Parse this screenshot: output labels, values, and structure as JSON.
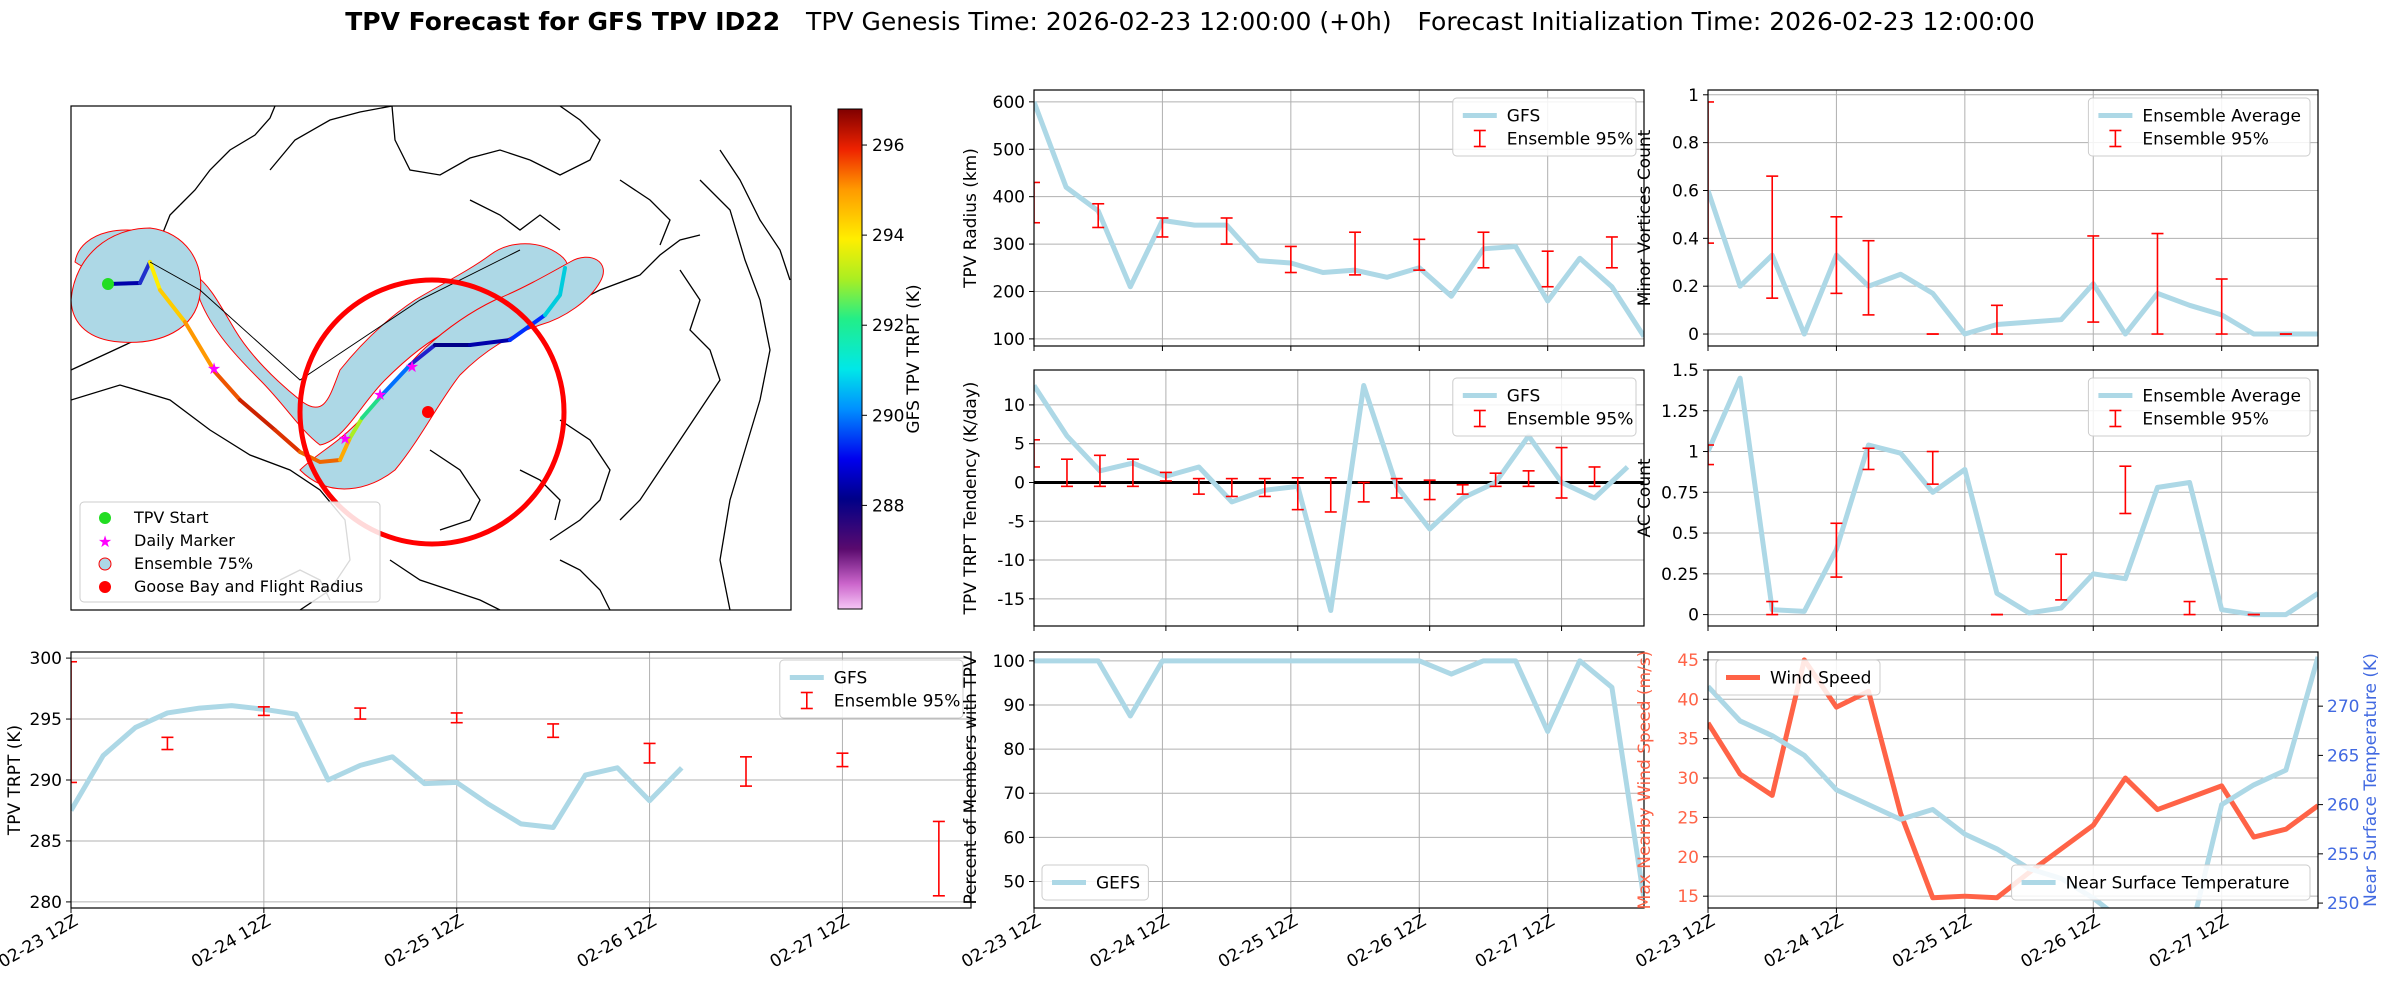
{
  "suptitle": {
    "bold": "TPV Forecast for GFS TPV ID22",
    "genesis": "TPV Genesis Time: 2026-02-23 12:00:00 (+0h)",
    "init": "Forecast Initialization Time: 2026-02-23 12:00:00"
  },
  "time_ticks": [
    "02-23 12Z",
    "02-24 12Z",
    "02-25 12Z",
    "02-26 12Z",
    "02-27 12Z"
  ],
  "colors": {
    "gfs_line": "#add8e6",
    "ensemble": "#ff0000",
    "wind": "#ff6347",
    "temp_axis": "#4169e1",
    "land_fill": "#add8e6",
    "circle": "#ff0000"
  },
  "map": {
    "colorbar_label": "GFS TPV TRPT (K)",
    "colorbar_ticks": [
      288,
      290,
      292,
      294,
      296
    ],
    "colorbar_range": [
      285.7,
      296.8
    ],
    "legend": [
      "TPV Start",
      "Daily Marker",
      "Ensemble 75%",
      "Goose Bay and Flight Radius"
    ]
  },
  "chart_data": [
    {
      "id": "radius",
      "type": "line",
      "title": "",
      "xlabel": "",
      "ylabel": "TPV Radius (km)",
      "ylim": [
        85,
        625
      ],
      "yticks": [
        100,
        200,
        300,
        400,
        500,
        600
      ],
      "grid": true,
      "legend_placement": "top-right",
      "show_xticklabels": false,
      "series": [
        {
          "name": "GFS",
          "kind": "line",
          "values": [
            600,
            420,
            370,
            210,
            350,
            340,
            340,
            265,
            260,
            240,
            245,
            230,
            250,
            190,
            290,
            295,
            180,
            270,
            210,
            105
          ]
        }
      ],
      "errorbars": {
        "name": "Ensemble 95%",
        "points": [
          [
            0,
            345,
            430
          ],
          [
            2,
            335,
            385
          ],
          [
            4,
            315,
            355
          ],
          [
            6,
            300,
            355
          ],
          [
            8,
            240,
            295
          ],
          [
            10,
            235,
            325
          ],
          [
            12,
            245,
            310
          ],
          [
            14,
            250,
            325
          ],
          [
            16,
            210,
            285
          ],
          [
            18,
            250,
            315
          ]
        ]
      }
    },
    {
      "id": "minor",
      "type": "line",
      "title": "",
      "xlabel": "",
      "ylabel": "Minor Vortices Count",
      "ylim": [
        -0.05,
        1.02
      ],
      "yticks": [
        0.0,
        0.2,
        0.4,
        0.6,
        0.8,
        1.0
      ],
      "grid": true,
      "legend_placement": "top-right",
      "show_xticklabels": false,
      "series": [
        {
          "name": "Ensemble Average",
          "kind": "line",
          "values": [
            0.6,
            0.2,
            0.33,
            0.0,
            0.33,
            0.2,
            0.25,
            0.17,
            0.0,
            0.04,
            0.05,
            0.06,
            0.21,
            0.0,
            0.17,
            0.12,
            0.08,
            0.0,
            0.0,
            0.0
          ]
        }
      ],
      "errorbars": {
        "name": "Ensemble 95%",
        "points": [
          [
            0,
            0.38,
            0.97
          ],
          [
            2,
            0.15,
            0.66
          ],
          [
            4,
            0.17,
            0.49
          ],
          [
            5,
            0.08,
            0.39
          ],
          [
            7,
            0.0,
            0.0
          ],
          [
            9,
            0.0,
            0.12
          ],
          [
            12,
            0.05,
            0.41
          ],
          [
            14,
            0.0,
            0.42
          ],
          [
            16,
            0.0,
            0.23
          ],
          [
            18,
            0.0,
            0.0
          ]
        ]
      }
    },
    {
      "id": "tendency",
      "type": "line",
      "title": "",
      "xlabel": "",
      "ylabel": "TPV TRPT Tendency (K/day)",
      "ylim": [
        -18.5,
        14.5
      ],
      "yticks": [
        -15,
        -10,
        -5,
        0,
        5,
        10
      ],
      "grid": true,
      "zero_line": true,
      "legend_placement": "top-right",
      "show_xticklabels": false,
      "series": [
        {
          "name": "GFS",
          "kind": "line",
          "values": [
            12.5,
            6,
            1.5,
            2.5,
            0.8,
            2,
            -2.5,
            -1,
            -0.5,
            -16.5,
            12.5,
            -0.5,
            -6,
            -2,
            0,
            6,
            0,
            -2,
            2
          ]
        }
      ],
      "errorbars": {
        "name": "Ensemble 95%",
        "points": [
          [
            0,
            2,
            5.5
          ],
          [
            1,
            -0.5,
            3
          ],
          [
            2,
            -0.5,
            3.5
          ],
          [
            3,
            -0.5,
            3
          ],
          [
            4,
            0.2,
            1.3
          ],
          [
            5,
            -1.5,
            0.5
          ],
          [
            6,
            -1.8,
            0.5
          ],
          [
            7,
            -1.8,
            0.5
          ],
          [
            8,
            -3.5,
            0.6
          ],
          [
            9,
            -3.8,
            0.6
          ],
          [
            10,
            -2.5,
            0
          ],
          [
            11,
            -2,
            0.5
          ],
          [
            12,
            -2.2,
            0.3
          ],
          [
            13,
            -1.5,
            -0.3
          ],
          [
            14,
            -0.5,
            1.2
          ],
          [
            15,
            -0.5,
            1.5
          ],
          [
            16,
            -2,
            4.5
          ],
          [
            17,
            -0.5,
            2
          ]
        ]
      }
    },
    {
      "id": "ac",
      "type": "line",
      "title": "",
      "xlabel": "",
      "ylabel": "AC Count",
      "ylim": [
        -0.07,
        1.5
      ],
      "yticks": [
        0.0,
        0.25,
        0.5,
        0.75,
        1.0,
        1.25,
        1.5
      ],
      "grid": true,
      "legend_placement": "top-right",
      "show_xticklabels": false,
      "series": [
        {
          "name": "Ensemble Average",
          "kind": "line",
          "values": [
            1.0,
            1.45,
            0.03,
            0.02,
            0.4,
            1.04,
            0.99,
            0.75,
            0.89,
            0.13,
            0.01,
            0.04,
            0.25,
            0.22,
            0.78,
            0.81,
            0.03,
            0.0,
            0.0,
            0.13
          ]
        }
      ],
      "errorbars": {
        "name": "Ensemble 95%",
        "points": [
          [
            0,
            0.92,
            1.04
          ],
          [
            2,
            0.0,
            0.08
          ],
          [
            4,
            0.23,
            0.56
          ],
          [
            5,
            0.89,
            1.02
          ],
          [
            7,
            0.8,
            1.0
          ],
          [
            9,
            0.0,
            0.0
          ],
          [
            11,
            0.09,
            0.37
          ],
          [
            13,
            0.62,
            0.91
          ],
          [
            15,
            0.0,
            0.08
          ],
          [
            17,
            0.0,
            0.0
          ]
        ]
      }
    },
    {
      "id": "trpt",
      "type": "line",
      "title": "",
      "xlabel": "",
      "ylabel": "TPV TRPT (K)",
      "ylim": [
        279.5,
        300.5
      ],
      "yticks": [
        280,
        285,
        290,
        295,
        300
      ],
      "grid": true,
      "legend_placement": "top-right",
      "show_xticklabels": true,
      "series": [
        {
          "name": "GFS",
          "kind": "line",
          "values": [
            287.5,
            292,
            294.3,
            295.5,
            295.9,
            296.1,
            295.8,
            295.4,
            290,
            291.2,
            291.9,
            289.7,
            289.8,
            288,
            286.4,
            286.1,
            290.4,
            291,
            288.3,
            291
          ]
        }
      ],
      "errorbars": {
        "name": "Ensemble 95%",
        "points": [
          [
            0,
            289.8,
            299.7
          ],
          [
            3,
            292.5,
            293.5
          ],
          [
            6,
            295.3,
            296
          ],
          [
            9,
            295,
            295.9
          ],
          [
            12,
            294.7,
            295.5
          ],
          [
            15,
            293.5,
            294.6
          ],
          [
            18,
            291.4,
            293
          ],
          [
            21,
            289.5,
            291.9
          ],
          [
            24,
            291.1,
            292.2
          ],
          [
            27,
            280.5,
            286.6
          ]
        ]
      }
    },
    {
      "id": "percent",
      "type": "line",
      "title": "",
      "xlabel": "",
      "ylabel": "Percent of Members with TPV",
      "ylim": [
        44,
        102
      ],
      "yticks": [
        50,
        60,
        70,
        80,
        90,
        100
      ],
      "grid": true,
      "legend_placement": "bottom-left",
      "show_xticklabels": true,
      "series": [
        {
          "name": "GEFS",
          "kind": "line",
          "values": [
            100,
            100,
            100,
            87.5,
            100,
            100,
            100,
            100,
            100,
            100,
            100,
            100,
            100,
            97,
            100,
            100,
            84,
            100,
            94,
            46
          ]
        }
      ]
    },
    {
      "id": "wind_temp",
      "type": "line",
      "title": "",
      "xlabel": "",
      "ylabel": "Max Nearby Wind Speed (m/s)",
      "ylabel_right": "Near Surface Temperature (K)",
      "ylim": [
        13.5,
        46
      ],
      "ylim_right": [
        249.5,
        275.5
      ],
      "yticks": [
        15,
        20,
        25,
        30,
        35,
        40,
        45
      ],
      "yticks_right": [
        250,
        255,
        260,
        265,
        270
      ],
      "grid": true,
      "legend_placement": "top-left / bottom-right",
      "show_xticklabels": true,
      "series": [
        {
          "name": "Wind Speed",
          "kind": "line",
          "axis": "left",
          "values": [
            37,
            30.5,
            27.8,
            45,
            39,
            41,
            25.5,
            14.8,
            15,
            14.8,
            18,
            21,
            24,
            30,
            26,
            27.5,
            29,
            22.5,
            23.5,
            26.5
          ]
        },
        {
          "name": "Near Surface Temperature",
          "kind": "line",
          "axis": "right",
          "values": [
            272,
            268.5,
            267,
            265,
            261.5,
            260,
            258.5,
            259.5,
            257,
            255.5,
            253.5,
            252.5,
            250.5,
            248,
            247.5,
            246.5,
            260,
            262,
            263.5,
            275
          ]
        }
      ]
    }
  ]
}
